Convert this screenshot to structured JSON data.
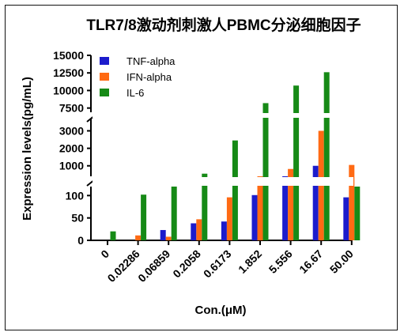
{
  "chart_data": {
    "type": "bar",
    "title": "TLR7/8激动剂刺激人PBMC分泌细胞因子",
    "xlabel": "Con.(μM)",
    "ylabel": "Expression levels(pg/mL)",
    "categories": [
      "0",
      "0.02286",
      "0.06859",
      "0.2058",
      "0.6173",
      "1.852",
      "5.556",
      "16.67",
      "50.00"
    ],
    "series": [
      {
        "name": "TNF-alpha",
        "color": "#1c1ccc",
        "values": [
          0,
          0,
          23,
          38,
          42,
          101,
          350,
          1000,
          96
        ]
      },
      {
        "name": "IFN-alpha",
        "color": "#ff6a13",
        "values": [
          0,
          11,
          8,
          47,
          96,
          150,
          820,
          3000,
          1050
        ]
      },
      {
        "name": "IL-6",
        "color": "#168a16",
        "values": [
          20,
          102,
          120,
          550,
          2450,
          8200,
          10700,
          12600,
          120
        ]
      }
    ],
    "y_segments": [
      {
        "range": [
          0,
          120
        ],
        "ticks": [
          "0",
          "50",
          "100"
        ],
        "tick_values": [
          0,
          50,
          100
        ]
      },
      {
        "range": [
          400,
          3700
        ],
        "ticks": [
          "1000",
          "2000",
          "3000"
        ],
        "tick_values": [
          1000,
          2000,
          3000
        ]
      },
      {
        "range": [
          6900,
          15000
        ],
        "ticks": [
          "7500",
          "10000",
          "12500",
          "15000"
        ],
        "tick_values": [
          7500,
          10000,
          12500,
          15000
        ]
      }
    ],
    "legend_position": "top-left",
    "grid": false
  }
}
